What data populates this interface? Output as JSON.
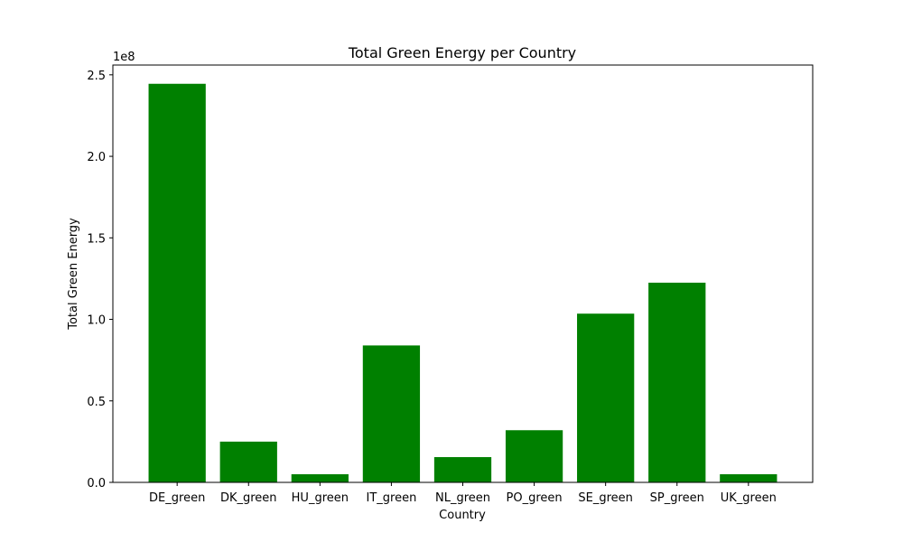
{
  "chart_data": {
    "type": "bar",
    "title": "Total Green Energy per Country",
    "xlabel": "Country",
    "ylabel": "Total Green Energy",
    "y_offset_label": "1e8",
    "y_tick_values": [
      0,
      0.5,
      1.0,
      1.5,
      2.0,
      2.5
    ],
    "y_tick_labels": [
      "0.0",
      "0.5",
      "1.0",
      "1.5",
      "2.0",
      "2.5"
    ],
    "ylim": [
      0,
      2.56
    ],
    "y_unit_multiplier": 100000000,
    "categories": [
      "DE_green",
      "DK_green",
      "HU_green",
      "IT_green",
      "NL_green",
      "PO_green",
      "SE_green",
      "SP_green",
      "UK_green"
    ],
    "values": [
      2.445,
      0.25,
      0.05,
      0.84,
      0.155,
      0.32,
      1.035,
      1.225,
      0.05
    ],
    "bar_color": "#008000",
    "grid": false,
    "legend": "none"
  }
}
